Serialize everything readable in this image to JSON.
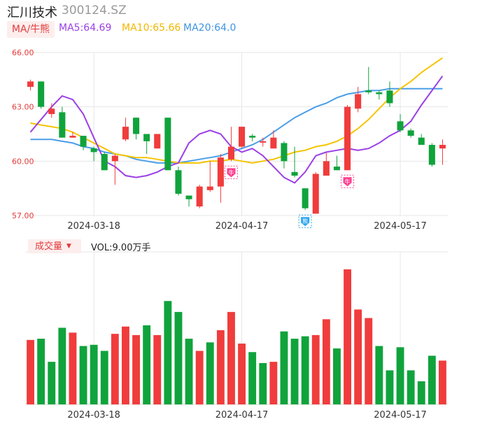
{
  "header": {
    "name": "汇川技术",
    "code": "300124.SZ",
    "ma_tab": "MA/牛熊",
    "ma5": "MA5:64.69",
    "ma10": "MA10:65.66",
    "ma20": "MA20:64.0"
  },
  "volume_header": {
    "tab": "成交量",
    "vol": "VOL:9.00万手"
  },
  "colors": {
    "up": "#f03c3c",
    "down": "#10a33c",
    "ma5": "#9b3fe6",
    "ma10": "#f5c400",
    "ma20": "#4a9ee8",
    "bull_marker": "#ff3e8f",
    "bear_marker": "#2aa6f0"
  },
  "markers": [
    {
      "index": 19,
      "type": "bull",
      "label": "牛"
    },
    {
      "index": 26,
      "type": "bear",
      "label": "熊"
    },
    {
      "index": 30,
      "type": "bull",
      "label": "牛"
    }
  ],
  "chart_data": {
    "type": "candlestick",
    "ylim": [
      57.0,
      66.0
    ],
    "y_ticks": [
      "66.00",
      "63.00",
      "60.00",
      "57.00"
    ],
    "x_tick_labels": [
      {
        "index": 6,
        "label": "2024-03-18"
      },
      {
        "index": 20,
        "label": "2024-04-17"
      },
      {
        "index": 35,
        "label": "2024-05-17"
      }
    ],
    "candles": [
      {
        "o": 64.1,
        "c": 64.4,
        "h": 64.5,
        "l": 63.9
      },
      {
        "o": 64.4,
        "c": 63.0,
        "h": 64.4,
        "l": 62.9
      },
      {
        "o": 62.6,
        "c": 62.9,
        "h": 63.2,
        "l": 62.4
      },
      {
        "o": 62.7,
        "c": 61.3,
        "h": 63.0,
        "l": 61.3
      },
      {
        "o": 61.3,
        "c": 61.4,
        "h": 61.6,
        "l": 61.3
      },
      {
        "o": 61.4,
        "c": 60.8,
        "h": 61.4,
        "l": 60.6
      },
      {
        "o": 60.7,
        "c": 60.5,
        "h": 60.8,
        "l": 60.0
      },
      {
        "o": 60.4,
        "c": 59.5,
        "h": 60.5,
        "l": 59.5
      },
      {
        "o": 60.0,
        "c": 60.3,
        "h": 60.4,
        "l": 58.7
      },
      {
        "o": 61.2,
        "c": 61.9,
        "h": 62.4,
        "l": 61.1
      },
      {
        "o": 62.4,
        "c": 61.5,
        "h": 62.4,
        "l": 61.2
      },
      {
        "o": 61.5,
        "c": 61.1,
        "h": 61.5,
        "l": 60.4
      },
      {
        "o": 60.7,
        "c": 61.5,
        "h": 61.5,
        "l": 60.7
      },
      {
        "o": 62.4,
        "c": 59.5,
        "h": 62.4,
        "l": 59.5
      },
      {
        "o": 59.5,
        "c": 58.2,
        "h": 59.7,
        "l": 58.1
      },
      {
        "o": 58.1,
        "c": 57.9,
        "h": 58.1,
        "l": 57.5
      },
      {
        "o": 57.5,
        "c": 58.6,
        "h": 58.7,
        "l": 57.4
      },
      {
        "o": 58.4,
        "c": 58.6,
        "h": 60.0,
        "l": 58.3
      },
      {
        "o": 58.6,
        "c": 60.2,
        "h": 60.4,
        "l": 57.7
      },
      {
        "o": 60.1,
        "c": 60.8,
        "h": 61.9,
        "l": 60.0
      },
      {
        "o": 60.8,
        "c": 61.9,
        "h": 61.9,
        "l": 60.7
      },
      {
        "o": 61.4,
        "c": 61.3,
        "h": 61.5,
        "l": 61.1
      },
      {
        "o": 61.1,
        "c": 61.1,
        "h": 61.3,
        "l": 60.8
      },
      {
        "o": 60.7,
        "c": 61.3,
        "h": 61.7,
        "l": 60.7
      },
      {
        "o": 61.0,
        "c": 60.0,
        "h": 61.1,
        "l": 59.6
      },
      {
        "o": 59.4,
        "c": 59.2,
        "h": 60.8,
        "l": 59.1
      },
      {
        "o": 58.5,
        "c": 57.4,
        "h": 58.5,
        "l": 57.3
      },
      {
        "o": 57.1,
        "c": 59.3,
        "h": 59.4,
        "l": 57.1
      },
      {
        "o": 59.2,
        "c": 60.0,
        "h": 60.5,
        "l": 59.2
      },
      {
        "o": 59.7,
        "c": 59.5,
        "h": 60.3,
        "l": 59.5
      },
      {
        "o": 59.5,
        "c": 63.0,
        "h": 63.1,
        "l": 59.5
      },
      {
        "o": 62.9,
        "c": 63.7,
        "h": 64.1,
        "l": 62.7
      },
      {
        "o": 63.9,
        "c": 63.8,
        "h": 65.2,
        "l": 63.7
      },
      {
        "o": 63.8,
        "c": 63.7,
        "h": 63.9,
        "l": 63.4
      },
      {
        "o": 63.9,
        "c": 63.2,
        "h": 64.4,
        "l": 63.0
      },
      {
        "o": 62.2,
        "c": 61.7,
        "h": 62.6,
        "l": 61.6
      },
      {
        "o": 61.7,
        "c": 61.4,
        "h": 61.8,
        "l": 61.3
      },
      {
        "o": 61.3,
        "c": 60.9,
        "h": 61.5,
        "l": 60.9
      },
      {
        "o": 60.9,
        "c": 59.8,
        "h": 61.0,
        "l": 59.7
      },
      {
        "o": 60.7,
        "c": 60.9,
        "h": 61.2,
        "l": 59.8
      }
    ],
    "volume": [
      {
        "v": 5.3,
        "up": true
      },
      {
        "v": 5.4,
        "up": false
      },
      {
        "v": 3.5,
        "up": false
      },
      {
        "v": 6.3,
        "up": false
      },
      {
        "v": 5.9,
        "up": true
      },
      {
        "v": 4.8,
        "up": false
      },
      {
        "v": 4.9,
        "up": false
      },
      {
        "v": 4.4,
        "up": false
      },
      {
        "v": 5.8,
        "up": true
      },
      {
        "v": 6.4,
        "up": true
      },
      {
        "v": 5.7,
        "up": true
      },
      {
        "v": 6.5,
        "up": false
      },
      {
        "v": 5.7,
        "up": true
      },
      {
        "v": 8.5,
        "up": false
      },
      {
        "v": 7.6,
        "up": false
      },
      {
        "v": 5.4,
        "up": false
      },
      {
        "v": 4.4,
        "up": true
      },
      {
        "v": 5.1,
        "up": false
      },
      {
        "v": 6.1,
        "up": true
      },
      {
        "v": 7.6,
        "up": true
      },
      {
        "v": 5.0,
        "up": true
      },
      {
        "v": 4.3,
        "up": false
      },
      {
        "v": 3.4,
        "up": false
      },
      {
        "v": 3.5,
        "up": true
      },
      {
        "v": 6.0,
        "up": false
      },
      {
        "v": 5.4,
        "up": false
      },
      {
        "v": 5.6,
        "up": false
      },
      {
        "v": 5.7,
        "up": true
      },
      {
        "v": 7.0,
        "up": true
      },
      {
        "v": 4.6,
        "up": false
      },
      {
        "v": 11.1,
        "up": true
      },
      {
        "v": 7.8,
        "up": true
      },
      {
        "v": 7.1,
        "up": true
      },
      {
        "v": 4.8,
        "up": false
      },
      {
        "v": 2.8,
        "up": false
      },
      {
        "v": 4.7,
        "up": false
      },
      {
        "v": 2.8,
        "up": false
      },
      {
        "v": 1.9,
        "up": false
      },
      {
        "v": 4.0,
        "up": false
      },
      {
        "v": 3.6,
        "up": true
      }
    ],
    "ma5_series": [
      61.6,
      62.3,
      63.0,
      63.6,
      63.4,
      62.6,
      61.3,
      60.0,
      59.7,
      59.2,
      59.1,
      59.2,
      59.4,
      59.7,
      59.9,
      61.0,
      61.5,
      61.7,
      61.5,
      60.8,
      60.5,
      60.7,
      60.3,
      59.7,
      59.1,
      58.8,
      59.4,
      60.3,
      60.5,
      60.6,
      60.7,
      60.6,
      60.7,
      61.0,
      61.4,
      61.7,
      62.2,
      63.1,
      63.9,
      64.7
    ],
    "ma10_series": [
      62.1,
      62.0,
      61.9,
      61.8,
      61.6,
      61.3,
      61.0,
      60.7,
      60.4,
      60.3,
      60.2,
      60.2,
      60.1,
      60.0,
      59.9,
      59.9,
      59.9,
      60.0,
      60.0,
      60.1,
      60.0,
      59.9,
      60.0,
      60.1,
      60.3,
      60.5,
      60.6,
      60.8,
      60.9,
      61.1,
      61.4,
      61.8,
      62.3,
      62.9,
      63.5,
      64.0,
      64.4,
      64.9,
      65.3,
      65.7
    ],
    "ma20_series": [
      61.2,
      61.2,
      61.2,
      61.1,
      61.0,
      60.8,
      60.7,
      60.5,
      60.4,
      60.3,
      60.1,
      60.0,
      59.9,
      59.9,
      59.9,
      60.0,
      60.1,
      60.2,
      60.3,
      60.5,
      60.7,
      60.9,
      61.2,
      61.6,
      62.0,
      62.4,
      62.7,
      63.0,
      63.2,
      63.5,
      63.7,
      63.8,
      63.9,
      63.9,
      64.0,
      64.0,
      64.0,
      64.0,
      64.0,
      64.0
    ]
  }
}
